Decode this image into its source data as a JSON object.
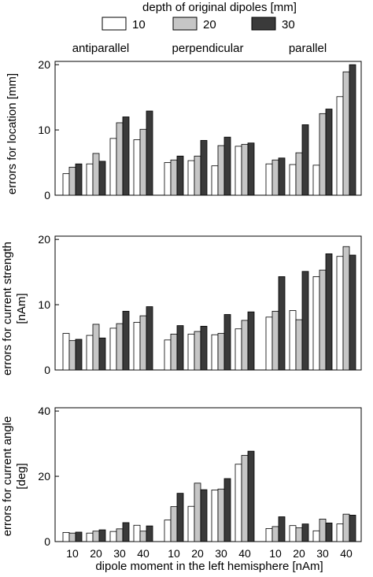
{
  "legend": {
    "title": "depth of original dipoles [mm]",
    "items": [
      {
        "label": "10",
        "color": "#ffffff"
      },
      {
        "label": "20",
        "color": "#c6c6c6"
      },
      {
        "label": "30",
        "color": "#3a3a3a"
      }
    ]
  },
  "chart_data": [
    {
      "type": "bar",
      "panel_row": 1,
      "group_titles": [
        "antiparallel",
        "perpendicular",
        "parallel"
      ],
      "categories": [
        "10",
        "20",
        "30",
        "40"
      ],
      "ylabel": [
        "errors for location [mm]"
      ],
      "ylim": [
        0,
        20.5
      ],
      "yticks": [
        0,
        10,
        20
      ],
      "series": [
        {
          "name": "10",
          "values": [
            [
              3.3,
              4.8,
              8.7,
              8.5
            ],
            [
              5.0,
              5.3,
              4.5,
              7.5
            ],
            [
              4.8,
              4.7,
              4.6,
              15.1
            ]
          ]
        },
        {
          "name": "20",
          "values": [
            [
              4.3,
              6.4,
              11.1,
              10.1
            ],
            [
              5.4,
              6.0,
              7.6,
              7.8
            ],
            [
              5.4,
              6.5,
              12.5,
              18.9
            ]
          ]
        },
        {
          "name": "30",
          "values": [
            [
              4.8,
              5.2,
              12.0,
              12.9
            ],
            [
              6.0,
              8.4,
              8.9,
              8.0
            ],
            [
              5.7,
              10.8,
              13.2,
              20.0
            ]
          ]
        }
      ]
    },
    {
      "type": "bar",
      "panel_row": 2,
      "categories": [
        "10",
        "20",
        "30",
        "40"
      ],
      "ylabel": [
        "errors for current strength",
        "[nAm]"
      ],
      "ylim": [
        0,
        20.5
      ],
      "yticks": [
        0,
        10,
        20
      ],
      "series": [
        {
          "name": "10",
          "values": [
            [
              5.6,
              5.3,
              6.4,
              7.3
            ],
            [
              4.6,
              5.5,
              5.4,
              6.3
            ],
            [
              8.1,
              9.1,
              14.3,
              17.4
            ]
          ]
        },
        {
          "name": "20",
          "values": [
            [
              4.5,
              7.0,
              7.1,
              8.3
            ],
            [
              5.5,
              5.9,
              5.6,
              7.6
            ],
            [
              9.0,
              7.7,
              15.3,
              18.9
            ]
          ]
        },
        {
          "name": "30",
          "values": [
            [
              4.7,
              4.9,
              9.0,
              9.7
            ],
            [
              6.8,
              6.7,
              8.5,
              8.9
            ],
            [
              14.3,
              15.1,
              17.8,
              17.6
            ]
          ]
        }
      ]
    },
    {
      "type": "bar",
      "panel_row": 3,
      "categories": [
        "10",
        "20",
        "30",
        "40"
      ],
      "xlabel": "dipole moment in the left hemisphere [nAm]",
      "ylabel": [
        "errors for current angle",
        "[deg]"
      ],
      "ylim": [
        0,
        41
      ],
      "yticks": [
        0,
        20,
        40
      ],
      "series": [
        {
          "name": "10",
          "values": [
            [
              2.8,
              2.6,
              3.1,
              5.0
            ],
            [
              6.6,
              10.8,
              15.8,
              23.7
            ],
            [
              4.0,
              4.9,
              3.3,
              5.4
            ]
          ]
        },
        {
          "name": "20",
          "values": [
            [
              2.6,
              3.2,
              3.9,
              3.2
            ],
            [
              10.7,
              17.9,
              16.1,
              26.4
            ],
            [
              4.6,
              4.2,
              6.9,
              8.4
            ]
          ]
        },
        {
          "name": "30",
          "values": [
            [
              2.9,
              3.6,
              5.8,
              4.8
            ],
            [
              14.8,
              15.9,
              19.3,
              27.7
            ],
            [
              7.6,
              5.4,
              5.7,
              8.1
            ]
          ]
        }
      ]
    }
  ]
}
